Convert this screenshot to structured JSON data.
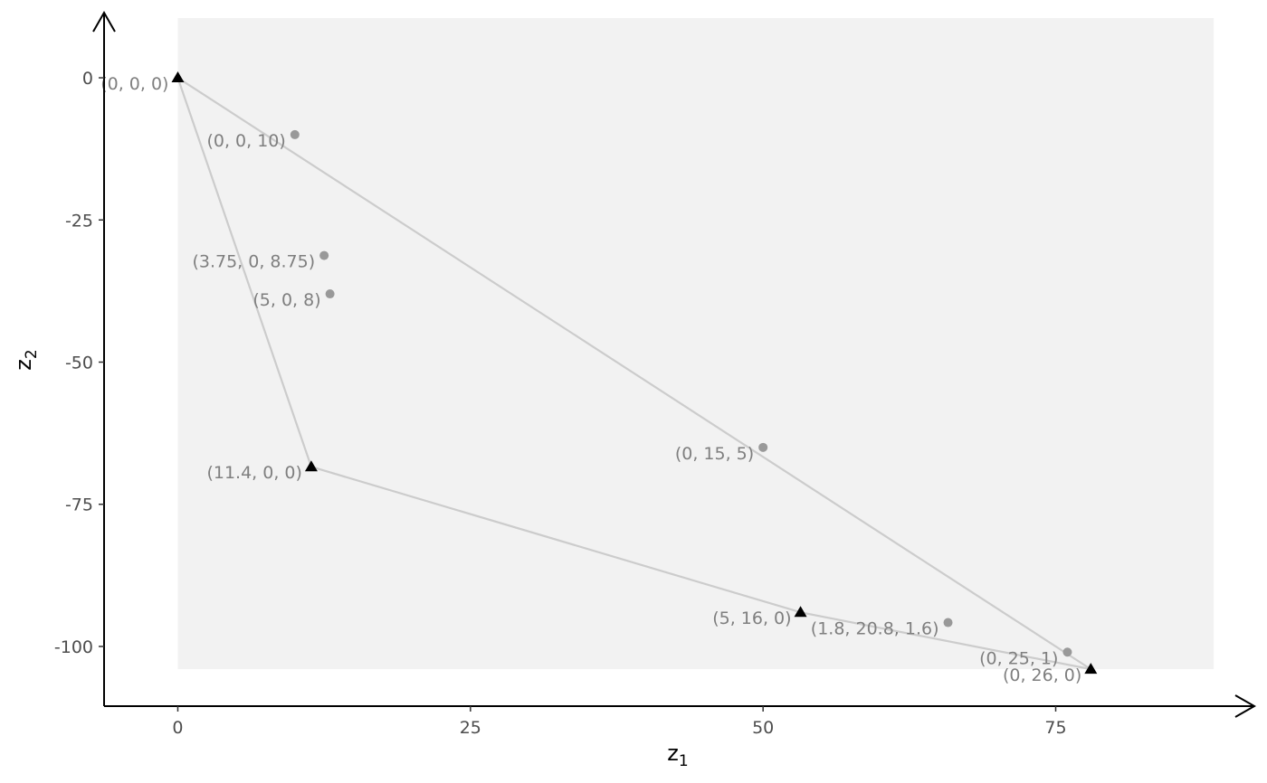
{
  "chart_data": {
    "type": "scatter",
    "xlabel": {
      "base": "z",
      "sub": "1"
    },
    "ylabel": {
      "base": "z",
      "sub": "2"
    },
    "xlim": [
      -6.3,
      88.8
    ],
    "ylim": [
      -110.5,
      10.5
    ],
    "x_ticks": [
      {
        "value": 0,
        "label": "0"
      },
      {
        "value": 25,
        "label": "25"
      },
      {
        "value": 50,
        "label": "50"
      },
      {
        "value": 75,
        "label": "75"
      }
    ],
    "y_ticks": [
      {
        "value": 0,
        "label": "0"
      },
      {
        "value": -25,
        "label": "-25"
      },
      {
        "value": -50,
        "label": "-50"
      },
      {
        "value": -75,
        "label": "-75"
      },
      {
        "value": -100,
        "label": "-100"
      }
    ],
    "region": {
      "x_min": 0,
      "x_max": 88.5,
      "y_min": -104,
      "y_max": 10.5,
      "color": "#f2f2f2"
    },
    "hull": [
      {
        "x": 0,
        "y": 0
      },
      {
        "x": 78,
        "y": -104
      },
      {
        "x": 53.2,
        "y": -94
      },
      {
        "x": 11.4,
        "y": -68.4
      }
    ],
    "hull_color": "#cccccc",
    "points": [
      {
        "x": 0,
        "y": 0,
        "label": "(0, 0, 0)",
        "shape": "triangle",
        "color": "#000000"
      },
      {
        "x": 11.4,
        "y": -68.4,
        "label": "(11.4, 0, 0)",
        "shape": "triangle",
        "color": "#000000"
      },
      {
        "x": 53.2,
        "y": -94,
        "label": "(5, 16, 0)",
        "shape": "triangle",
        "color": "#000000"
      },
      {
        "x": 78,
        "y": -104,
        "label": "(0, 26, 0)",
        "shape": "triangle",
        "color": "#000000"
      },
      {
        "x": 10,
        "y": -10,
        "label": "(0, 0, 10)",
        "shape": "circle",
        "color": "#999999"
      },
      {
        "x": 12.5,
        "y": -31.25,
        "label": "(3.75, 0, 8.75)",
        "shape": "circle",
        "color": "#999999"
      },
      {
        "x": 13,
        "y": -38,
        "label": "(5, 0, 8)",
        "shape": "circle",
        "color": "#999999"
      },
      {
        "x": 50,
        "y": -65,
        "label": "(0, 15, 5)",
        "shape": "circle",
        "color": "#999999"
      },
      {
        "x": 65.8,
        "y": -95.8,
        "label": "(1.8, 20.8, 1.6)",
        "shape": "circle",
        "color": "#999999"
      },
      {
        "x": 76,
        "y": -101,
        "label": "(0, 25, 1)",
        "shape": "circle",
        "color": "#999999"
      }
    ]
  }
}
